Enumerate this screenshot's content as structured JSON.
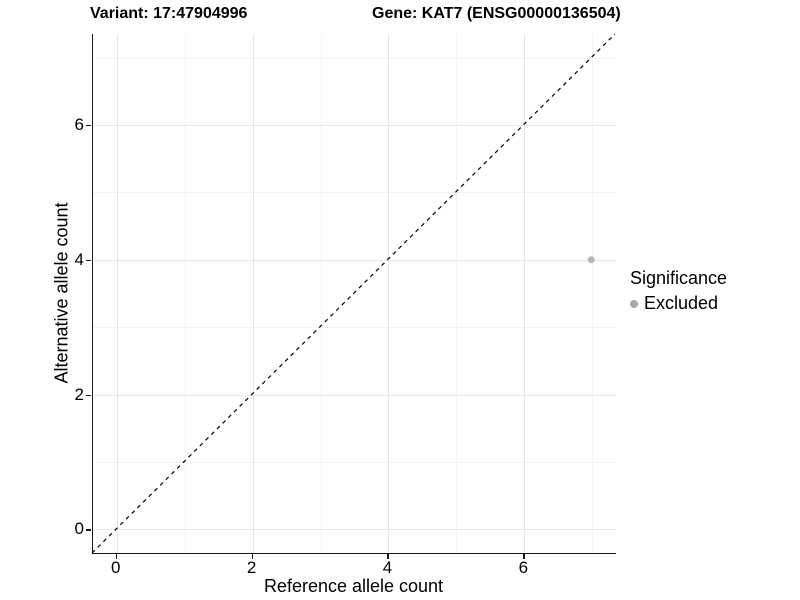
{
  "header": {
    "title_left": "Variant: 17:47904996",
    "title_right": "Gene: KAT7 (ENSG00000136504)"
  },
  "chart_data": {
    "type": "scatter",
    "title": "Variant: 17:47904996   Gene: KAT7 (ENSG00000136504)",
    "xlabel": "Reference allele count",
    "ylabel": "Alternative allele count",
    "xlim": [
      -0.35,
      7.35
    ],
    "ylim": [
      -0.35,
      7.35
    ],
    "x_major_ticks": [
      0,
      2,
      4,
      6
    ],
    "y_major_ticks": [
      0,
      2,
      4,
      6
    ],
    "x_minor_gridlines": [
      1,
      3,
      5,
      7
    ],
    "y_minor_gridlines": [
      1,
      3,
      5,
      7
    ],
    "grid": true,
    "series": [
      {
        "name": "Excluded",
        "points": [
          {
            "x": 7,
            "y": 4
          }
        ],
        "color": "#b5b5b5",
        "marker": "circle",
        "marker_radius": 3.5
      }
    ],
    "reference_line": {
      "type": "identity",
      "style": "dashed",
      "color": "#000000"
    },
    "legend": {
      "position": "right",
      "title": "Significance",
      "items": [
        {
          "label": "Excluded",
          "color": "#a8a8a8"
        }
      ]
    },
    "colors": {
      "grid_major": "#e6e6e6",
      "grid_minor": "#f3f3f3",
      "axis_line": "#1a1a1a",
      "background": "#ffffff"
    }
  }
}
